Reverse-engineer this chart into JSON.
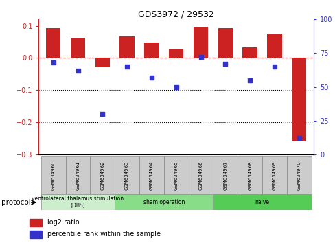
{
  "title": "GDS3972 / 29532",
  "samples": [
    "GSM634960",
    "GSM634961",
    "GSM634962",
    "GSM634963",
    "GSM634964",
    "GSM634965",
    "GSM634966",
    "GSM634967",
    "GSM634968",
    "GSM634969",
    "GSM634970"
  ],
  "log2_ratio": [
    0.093,
    0.062,
    -0.03,
    0.068,
    0.048,
    0.027,
    0.098,
    0.092,
    0.033,
    0.075,
    -0.26
  ],
  "percentile_rank": [
    68,
    62,
    30,
    65,
    57,
    50,
    72,
    67,
    55,
    65,
    12
  ],
  "bar_color": "#cc2222",
  "dot_color": "#3333cc",
  "ylim_left": [
    -0.3,
    0.12
  ],
  "ylim_right": [
    0,
    100
  ],
  "yticks_left": [
    -0.3,
    -0.2,
    -0.1,
    0.0,
    0.1
  ],
  "yticks_right": [
    0,
    25,
    50,
    75,
    100
  ],
  "hline_y": 0.0,
  "dotted_lines": [
    -0.1,
    -0.2
  ],
  "groups": [
    {
      "label": "ventrolateral thalamus stimulation\n(DBS)",
      "start": 0,
      "end": 3,
      "color": "#cceecc"
    },
    {
      "label": "sham operation",
      "start": 3,
      "end": 7,
      "color": "#88dd88"
    },
    {
      "label": "naive",
      "start": 7,
      "end": 11,
      "color": "#55cc55"
    }
  ],
  "legend_items": [
    {
      "label": "log2 ratio",
      "color": "#cc2222"
    },
    {
      "label": "percentile rank within the sample",
      "color": "#3333cc"
    }
  ],
  "protocol_label": "protocol",
  "sample_box_color": "#cccccc",
  "background_color": "#ffffff"
}
